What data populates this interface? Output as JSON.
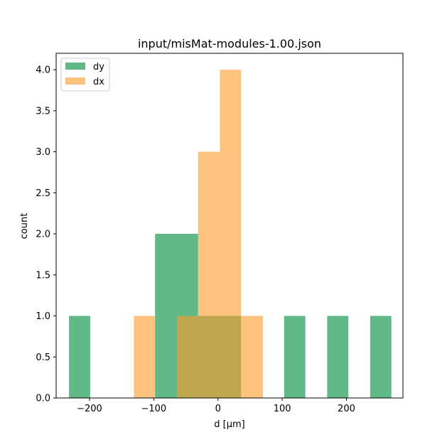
{
  "chart_data": {
    "type": "bar",
    "title": "input/misMat-modules-1.00.json",
    "xlabel": "d [µm]",
    "ylabel": "count",
    "xlim": [
      -252,
      288
    ],
    "ylim": [
      0,
      4.2
    ],
    "xticks": [
      -200,
      -100,
      0,
      100,
      200
    ],
    "xtick_labels": [
      "−200",
      "−100",
      "0",
      "100",
      "200"
    ],
    "yticks": [
      0.0,
      0.5,
      1.0,
      1.5,
      2.0,
      2.5,
      3.0,
      3.5,
      4.0
    ],
    "ytick_labels": [
      "0.0",
      "0.5",
      "1.0",
      "1.5",
      "2.0",
      "2.5",
      "3.0",
      "3.5",
      "4.0"
    ],
    "legend_position": "upper-left",
    "grid": false,
    "series": [
      {
        "name": "dy",
        "color": "#2ca25f",
        "opacity": 0.75,
        "bins": [
          {
            "x0": -232,
            "x1": -199,
            "count": 1
          },
          {
            "x0": -199,
            "x1": -165,
            "count": 0
          },
          {
            "x0": -165,
            "x1": -132,
            "count": 0
          },
          {
            "x0": -132,
            "x1": -98,
            "count": 0
          },
          {
            "x0": -98,
            "x1": -65,
            "count": 2
          },
          {
            "x0": -65,
            "x1": -31,
            "count": 2
          },
          {
            "x0": -31,
            "x1": 2,
            "count": 1
          },
          {
            "x0": 2,
            "x1": 36,
            "count": 1
          },
          {
            "x0": 36,
            "x1": 69,
            "count": 0
          },
          {
            "x0": 69,
            "x1": 103,
            "count": 0
          },
          {
            "x0": 103,
            "x1": 136,
            "count": 1
          },
          {
            "x0": 136,
            "x1": 170,
            "count": 0
          },
          {
            "x0": 170,
            "x1": 203,
            "count": 1
          },
          {
            "x0": 203,
            "x1": 237,
            "count": 0
          },
          {
            "x0": 237,
            "x1": 270,
            "count": 1
          }
        ]
      },
      {
        "name": "dx",
        "color": "#fe9929",
        "opacity": 0.6,
        "bins": [
          {
            "x0": -131,
            "x1": -98,
            "count": 1
          },
          {
            "x0": -98,
            "x1": -64,
            "count": 0
          },
          {
            "x0": -64,
            "x1": -31,
            "count": 1
          },
          {
            "x0": -31,
            "x1": 3,
            "count": 3
          },
          {
            "x0": 3,
            "x1": 36,
            "count": 4
          },
          {
            "x0": 36,
            "x1": 70,
            "count": 1
          }
        ]
      }
    ]
  }
}
